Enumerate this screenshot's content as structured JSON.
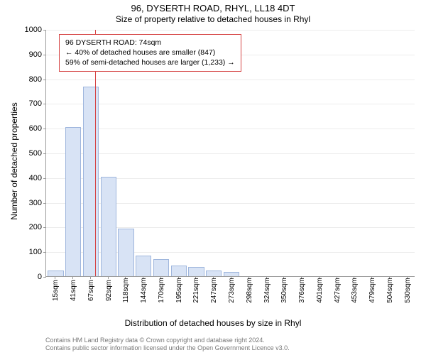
{
  "title_line1": "96, DYSERTH ROAD, RHYL, LL18 4DT",
  "title_line2": "Size of property relative to detached houses in Rhyl",
  "y_axis_label": "Number of detached properties",
  "x_axis_label": "Distribution of detached houses by size in Rhyl",
  "attribution_line1": "Contains HM Land Registry data © Crown copyright and database right 2024.",
  "attribution_line2": "Contains public sector information licensed under the Open Government Licence v3.0.",
  "chart": {
    "type": "bar",
    "background_color": "#ffffff",
    "grid_color": "#ececec",
    "axis_color": "#9a9a9a",
    "bar_fill": "#d8e3f5",
    "bar_stroke": "#9fb6dd",
    "subject_line_color": "#d64545",
    "annotation_border_color": "#d64545",
    "ylim_min": 0,
    "ylim_max": 1000,
    "ytick_step": 100,
    "yticks": [
      0,
      100,
      200,
      300,
      400,
      500,
      600,
      700,
      800,
      900,
      1000
    ],
    "x_categories": [
      "15sqm",
      "41sqm",
      "67sqm",
      "92sqm",
      "118sqm",
      "144sqm",
      "170sqm",
      "195sqm",
      "221sqm",
      "247sqm",
      "273sqm",
      "298sqm",
      "324sqm",
      "350sqm",
      "376sqm",
      "401sqm",
      "427sqm",
      "453sqm",
      "479sqm",
      "504sqm",
      "530sqm"
    ],
    "values": [
      20,
      600,
      765,
      400,
      190,
      80,
      65,
      40,
      35,
      20,
      15,
      0,
      0,
      0,
      0,
      0,
      0,
      0,
      0,
      0,
      0
    ],
    "bar_width_ratio": 0.82,
    "subject_value_sqm": 74,
    "x_min_sqm": 15,
    "x_step_sqm": 26,
    "annotation": {
      "line1": "96 DYSERTH ROAD: 74sqm",
      "line2": "← 40% of detached houses are smaller (847)",
      "line3": "59% of semi-detached houses are larger (1,233) →"
    },
    "title_fontsize": 13,
    "subtitle_fontsize": 12,
    "axis_label_fontsize": 12,
    "tick_fontsize": 11,
    "xtick_fontsize": 10,
    "annotation_fontsize": 10.5,
    "attribution_fontsize": 9
  }
}
